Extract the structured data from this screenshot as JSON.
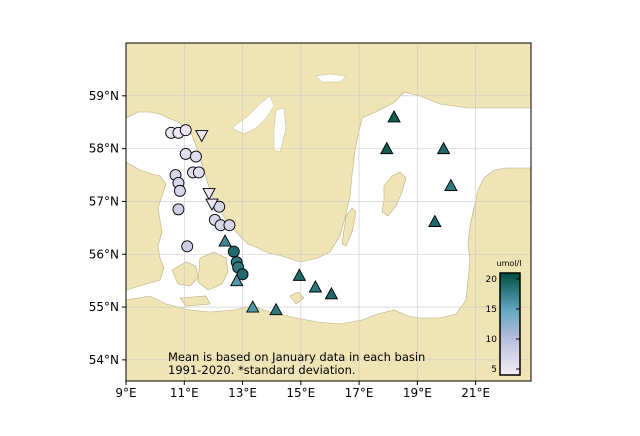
{
  "map": {
    "lon_range": [
      9,
      22.9
    ],
    "lat_range": [
      53.6,
      60.0
    ],
    "lon_ticks": [
      {
        "value": 9,
        "label": "9°E"
      },
      {
        "value": 11,
        "label": "11°E"
      },
      {
        "value": 13,
        "label": "13°E"
      },
      {
        "value": 15,
        "label": "15°E"
      },
      {
        "value": 17,
        "label": "17°E"
      },
      {
        "value": 19,
        "label": "19°E"
      },
      {
        "value": 21,
        "label": "21°E"
      }
    ],
    "lat_ticks": [
      {
        "value": 54,
        "label": "54°N"
      },
      {
        "value": 55,
        "label": "55°N"
      },
      {
        "value": 56,
        "label": "56°N"
      },
      {
        "value": 57,
        "label": "57°N"
      },
      {
        "value": 58,
        "label": "58°N"
      },
      {
        "value": 59,
        "label": "59°N"
      }
    ],
    "colors": {
      "land": "#efe4b5",
      "sea": "#ffffff",
      "grid": "#c8c8c8",
      "border": "#000000",
      "scale_low": "#f4eef7",
      "scale_mid": "#5fa4bd",
      "scale_high": "#004d40"
    }
  },
  "caption": {
    "line1": "Mean is based on January data in each basin",
    "line2": "1991-2020. *standard deviation."
  },
  "colorbar": {
    "unit": "umol/l",
    "min": 4,
    "max": 21,
    "ticks": [
      {
        "value": 5,
        "label": "5"
      },
      {
        "value": 10,
        "label": "10"
      },
      {
        "value": 15,
        "label": "15"
      },
      {
        "value": 20,
        "label": "20"
      }
    ]
  },
  "stations": [
    {
      "marker": "circle",
      "lon": 10.55,
      "lat": 58.3,
      "value": 5
    },
    {
      "marker": "circle",
      "lon": 10.8,
      "lat": 58.3,
      "value": 5
    },
    {
      "marker": "circle",
      "lon": 11.05,
      "lat": 58.35,
      "value": 5
    },
    {
      "marker": "circle",
      "lon": 11.05,
      "lat": 57.9,
      "value": 6
    },
    {
      "marker": "circle",
      "lon": 10.7,
      "lat": 57.5,
      "value": 7
    },
    {
      "marker": "circle",
      "lon": 10.8,
      "lat": 57.35,
      "value": 7
    },
    {
      "marker": "circle",
      "lon": 10.85,
      "lat": 57.2,
      "value": 7
    },
    {
      "marker": "circle",
      "lon": 11.4,
      "lat": 57.85,
      "value": 6
    },
    {
      "marker": "circle",
      "lon": 11.3,
      "lat": 57.55,
      "value": 6
    },
    {
      "marker": "circle",
      "lon": 11.5,
      "lat": 57.55,
      "value": 6
    },
    {
      "marker": "circle",
      "lon": 10.8,
      "lat": 56.85,
      "value": 8
    },
    {
      "marker": "circle",
      "lon": 11.1,
      "lat": 56.15,
      "value": 8
    },
    {
      "marker": "circle",
      "lon": 12.2,
      "lat": 56.9,
      "value": 7
    },
    {
      "marker": "circle",
      "lon": 12.05,
      "lat": 56.65,
      "value": 7
    },
    {
      "marker": "circle",
      "lon": 12.25,
      "lat": 56.55,
      "value": 7
    },
    {
      "marker": "circle",
      "lon": 12.55,
      "lat": 56.55,
      "value": 7
    },
    {
      "marker": "triangle-down",
      "lon": 11.6,
      "lat": 58.25,
      "value": 5
    },
    {
      "marker": "triangle-down",
      "lon": 11.85,
      "lat": 57.15,
      "value": 5
    },
    {
      "marker": "triangle-down",
      "lon": 11.95,
      "lat": 56.95,
      "value": 5
    },
    {
      "marker": "circle",
      "lon": 12.7,
      "lat": 56.05,
      "value": 19
    },
    {
      "marker": "circle",
      "lon": 12.8,
      "lat": 55.85,
      "value": 18
    },
    {
      "marker": "circle",
      "lon": 12.85,
      "lat": 55.75,
      "value": 18
    },
    {
      "marker": "circle",
      "lon": 13.0,
      "lat": 55.62,
      "value": 19
    },
    {
      "marker": "triangle",
      "lon": 12.4,
      "lat": 56.25,
      "value": 17
    },
    {
      "marker": "triangle",
      "lon": 12.8,
      "lat": 55.5,
      "value": 16
    },
    {
      "marker": "triangle",
      "lon": 13.35,
      "lat": 55.0,
      "value": 16
    },
    {
      "marker": "triangle",
      "lon": 14.15,
      "lat": 54.95,
      "value": 18
    },
    {
      "marker": "triangle",
      "lon": 14.95,
      "lat": 55.6,
      "value": 19
    },
    {
      "marker": "triangle",
      "lon": 15.5,
      "lat": 55.38,
      "value": 18
    },
    {
      "marker": "triangle",
      "lon": 16.05,
      "lat": 55.25,
      "value": 19
    },
    {
      "marker": "triangle",
      "lon": 18.2,
      "lat": 58.6,
      "value": 20
    },
    {
      "marker": "triangle",
      "lon": 17.95,
      "lat": 58.0,
      "value": 20
    },
    {
      "marker": "triangle",
      "lon": 19.9,
      "lat": 58.0,
      "value": 19
    },
    {
      "marker": "triangle",
      "lon": 20.15,
      "lat": 57.3,
      "value": 18
    },
    {
      "marker": "triangle",
      "lon": 19.6,
      "lat": 56.62,
      "value": 19
    }
  ]
}
